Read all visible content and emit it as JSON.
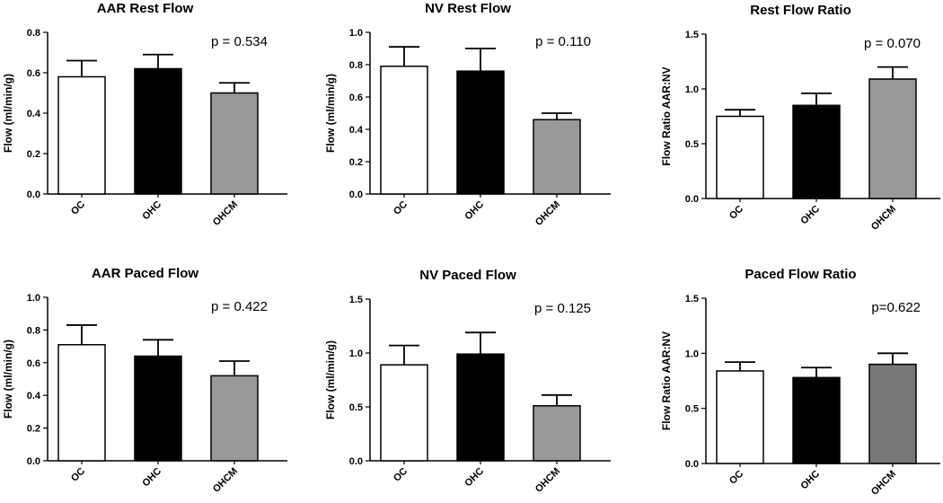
{
  "chart_data": [
    {
      "type": "bar",
      "title": "AAR Rest Flow",
      "ylabel": "Flow  (ml/min/g)",
      "ylim": [
        0,
        0.8
      ],
      "yticks": [
        "0.0",
        "0.2",
        "0.4",
        "0.6",
        "0.8"
      ],
      "categories": [
        "OC",
        "OHC",
        "OHCM"
      ],
      "values": [
        0.58,
        0.62,
        0.5
      ],
      "errors": [
        0.08,
        0.07,
        0.05
      ],
      "annotation": "p = 0.534"
    },
    {
      "type": "bar",
      "title": "NV Rest Flow",
      "ylabel": "Flow  (ml/min/g)",
      "ylim": [
        0,
        1.0
      ],
      "yticks": [
        "0.0",
        "0.2",
        "0.4",
        "0.6",
        "0.8",
        "1.0"
      ],
      "categories": [
        "OC",
        "OHC",
        "OHCM"
      ],
      "values": [
        0.79,
        0.76,
        0.46
      ],
      "errors": [
        0.12,
        0.14,
        0.04
      ],
      "annotation": "p = 0.110"
    },
    {
      "type": "bar",
      "title": "Rest Flow Ratio",
      "ylabel": "Flow Ratio AAR:NV",
      "ylim": [
        0,
        1.5
      ],
      "yticks": [
        "0.0",
        "0.5",
        "1.0",
        "1.5"
      ],
      "categories": [
        "OC",
        "OHC",
        "OHCM"
      ],
      "values": [
        0.75,
        0.85,
        1.09
      ],
      "errors": [
        0.06,
        0.11,
        0.11
      ],
      "annotation": "p = 0.070"
    },
    {
      "type": "bar",
      "title": "AAR Paced Flow",
      "ylabel": "Flow  (ml/min/g)",
      "ylim": [
        0,
        1.0
      ],
      "yticks": [
        "0.0",
        "0.2",
        "0.4",
        "0.6",
        "0.8",
        "1.0"
      ],
      "categories": [
        "OC",
        "OHC",
        "OHCM"
      ],
      "values": [
        0.71,
        0.64,
        0.52
      ],
      "errors": [
        0.12,
        0.1,
        0.09
      ],
      "annotation": "p = 0.422"
    },
    {
      "type": "bar",
      "title": "NV Paced Flow",
      "ylabel": "Flow  (ml/min/g)",
      "ylim": [
        0,
        1.5
      ],
      "yticks": [
        "0.0",
        "0.5",
        "1.0",
        "1.5"
      ],
      "categories": [
        "OC",
        "OHC",
        "OHCM"
      ],
      "values": [
        0.89,
        0.99,
        0.51
      ],
      "errors": [
        0.18,
        0.2,
        0.1
      ],
      "annotation": "p = 0.125"
    },
    {
      "type": "bar",
      "title": "Paced Flow Ratio",
      "ylabel": "Flow Ratio AAR:NV",
      "ylim": [
        0,
        1.5
      ],
      "yticks": [
        "0.0",
        "0.5",
        "1.0",
        "1.5"
      ],
      "categories": [
        "OC",
        "OHC",
        "OHCM"
      ],
      "values": [
        0.84,
        0.78,
        0.9
      ],
      "errors": [
        0.08,
        0.09,
        0.1
      ],
      "annotation": "p=0.622"
    }
  ],
  "colors": {
    "panels_bars": [
      [
        "#ffffff",
        "#000000",
        "#999999"
      ],
      [
        "#ffffff",
        "#000000",
        "#999999"
      ],
      [
        "#ffffff",
        "#000000",
        "#999999"
      ],
      [
        "#ffffff",
        "#000000",
        "#999999"
      ],
      [
        "#ffffff",
        "#000000",
        "#999999"
      ],
      [
        "#ffffff",
        "#000000",
        "#777777"
      ]
    ]
  }
}
